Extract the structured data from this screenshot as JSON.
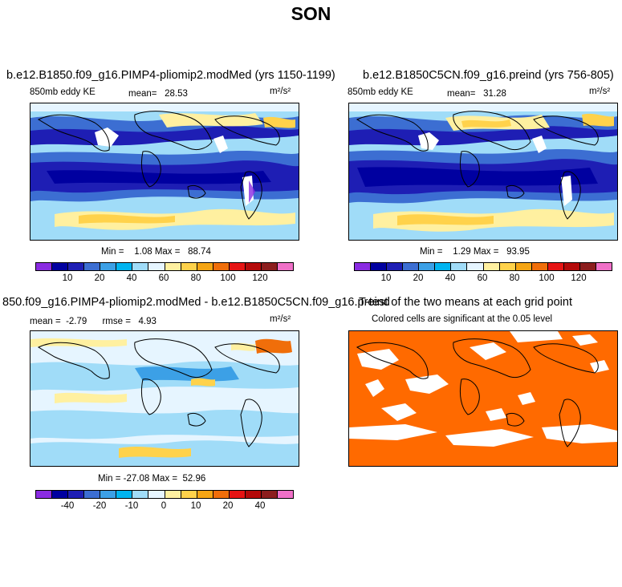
{
  "figure": {
    "title": "SON"
  },
  "colors": {
    "abs_scale": [
      "#8a2be2",
      "#0000a0",
      "#1e1eb4",
      "#3c6ed2",
      "#3ca0e6",
      "#00b4f0",
      "#a0dcf8",
      "#e6f5ff",
      "#fff0a0",
      "#ffd24b",
      "#f5a514",
      "#f06e0a",
      "#e61414",
      "#b40a0a",
      "#8c1e1e",
      "#f070c8"
    ],
    "diff_scale": [
      "#8a2be2",
      "#0000a0",
      "#1e1eb4",
      "#3c6ed2",
      "#3ca0e6",
      "#00b4f0",
      "#a0dcf8",
      "#e6f5ff",
      "#fff0a0",
      "#ffd24b",
      "#f5a514",
      "#f06e0a",
      "#e61414",
      "#b40a0a",
      "#8c1e1e",
      "#f070c8"
    ],
    "significant": "#ff6a00"
  },
  "panels": {
    "a": {
      "title": "b.e12.B1850.f09_g16.PIMP4-pliomip2.modMed (yrs 1150-1199)",
      "variable": "850mb eddy KE",
      "mean_label": "mean=",
      "mean_value": "28.53",
      "units": "m²/s²",
      "min_label": "Min =",
      "min_value": "1.08",
      "max_label": "Max =",
      "max_value": "88.74"
    },
    "b": {
      "title": "b.e12.B1850C5CN.f09_g16.preind (yrs 756-805)",
      "variable": "850mb eddy KE",
      "mean_label": "mean=",
      "mean_value": "31.28",
      "units": "m²/s²",
      "min_label": "Min =",
      "min_value": "1.29",
      "max_label": "Max =",
      "max_value": "93.95"
    },
    "c": {
      "title": "850.f09_g16.PIMP4-pliomip2.modMed - b.e12.B1850C5CN.f09_g16.preind",
      "mean_label": "mean =",
      "mean_value": "-2.79",
      "rmse_label": "rmse =",
      "rmse_value": "4.93",
      "units": "m²/s²",
      "min_label": "Min =",
      "min_value": "-27.08",
      "max_label": "Max =",
      "max_value": "52.96"
    },
    "d": {
      "title": "T-test of the two means at each grid point",
      "subtitle": "Colored cells are significant at the 0.05 level"
    }
  },
  "colorbars": {
    "abs_ticks": [
      "10",
      "20",
      "40",
      "60",
      "80",
      "100",
      "120"
    ],
    "diff_ticks": [
      "-40",
      "-20",
      "-10",
      "0",
      "10",
      "20",
      "40"
    ]
  }
}
